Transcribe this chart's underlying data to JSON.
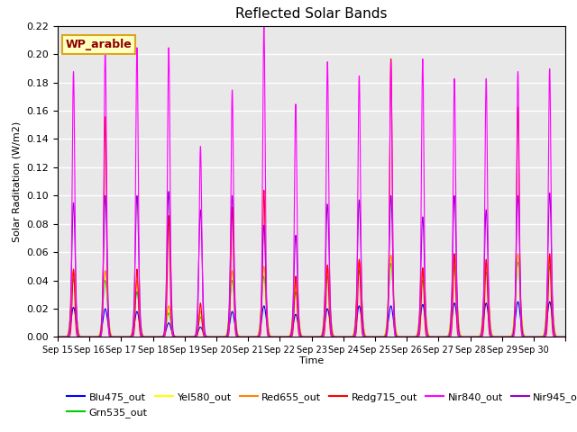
{
  "title": "Reflected Solar Bands",
  "xlabel": "Time",
  "ylabel": "Solar Raditation (W/m2)",
  "annotation": "WP_arable",
  "ylim": [
    0,
    0.22
  ],
  "series": {
    "Blu475_out": {
      "color": "#0000FF"
    },
    "Grn535_out": {
      "color": "#00CC00"
    },
    "Yel580_out": {
      "color": "#FFFF00"
    },
    "Red655_out": {
      "color": "#FF8800"
    },
    "Redg715_out": {
      "color": "#FF0000"
    },
    "Nir840_out": {
      "color": "#FF00FF"
    },
    "Nir945_out": {
      "color": "#9900CC"
    }
  },
  "xtick_labels": [
    "Sep 15",
    "Sep 16",
    "Sep 17",
    "Sep 18",
    "Sep 19",
    "Sep 20",
    "Sep 21",
    "Sep 22",
    "Sep 23",
    "Sep 24",
    "Sep 25",
    "Sep 26",
    "Sep 27",
    "Sep 28",
    "Sep 29",
    "Sep 30"
  ],
  "background_color": "#E8E8E8",
  "grid_color": "#FFFFFF",
  "days": 16,
  "peaks_nir840": [
    0.188,
    0.205,
    0.205,
    0.205,
    0.135,
    0.175,
    0.22,
    0.165,
    0.195,
    0.185,
    0.195,
    0.197,
    0.183,
    0.183,
    0.188,
    0.19
  ],
  "peaks_nir945": [
    0.095,
    0.1,
    0.1,
    0.103,
    0.09,
    0.1,
    0.079,
    0.072,
    0.094,
    0.097,
    0.1,
    0.085,
    0.1,
    0.09,
    0.1,
    0.102
  ],
  "peaks_blu475": [
    0.021,
    0.02,
    0.018,
    0.01,
    0.007,
    0.018,
    0.022,
    0.016,
    0.02,
    0.022,
    0.022,
    0.023,
    0.024,
    0.024,
    0.025,
    0.025
  ],
  "peaks_grn535": [
    0.041,
    0.04,
    0.032,
    0.017,
    0.014,
    0.04,
    0.043,
    0.032,
    0.043,
    0.047,
    0.052,
    0.04,
    0.05,
    0.046,
    0.053,
    0.05
  ],
  "peaks_yel580": [
    0.046,
    0.046,
    0.038,
    0.02,
    0.016,
    0.046,
    0.048,
    0.038,
    0.049,
    0.053,
    0.058,
    0.046,
    0.056,
    0.052,
    0.058,
    0.056
  ],
  "peaks_red655": [
    0.047,
    0.047,
    0.04,
    0.022,
    0.018,
    0.047,
    0.05,
    0.04,
    0.05,
    0.054,
    0.058,
    0.048,
    0.058,
    0.054,
    0.059,
    0.058
  ],
  "peaks_redg715": [
    0.048,
    0.156,
    0.048,
    0.086,
    0.024,
    0.092,
    0.104,
    0.043,
    0.051,
    0.055,
    0.197,
    0.049,
    0.059,
    0.055,
    0.163,
    0.059
  ],
  "figsize": [
    6.4,
    4.8
  ],
  "dpi": 100
}
